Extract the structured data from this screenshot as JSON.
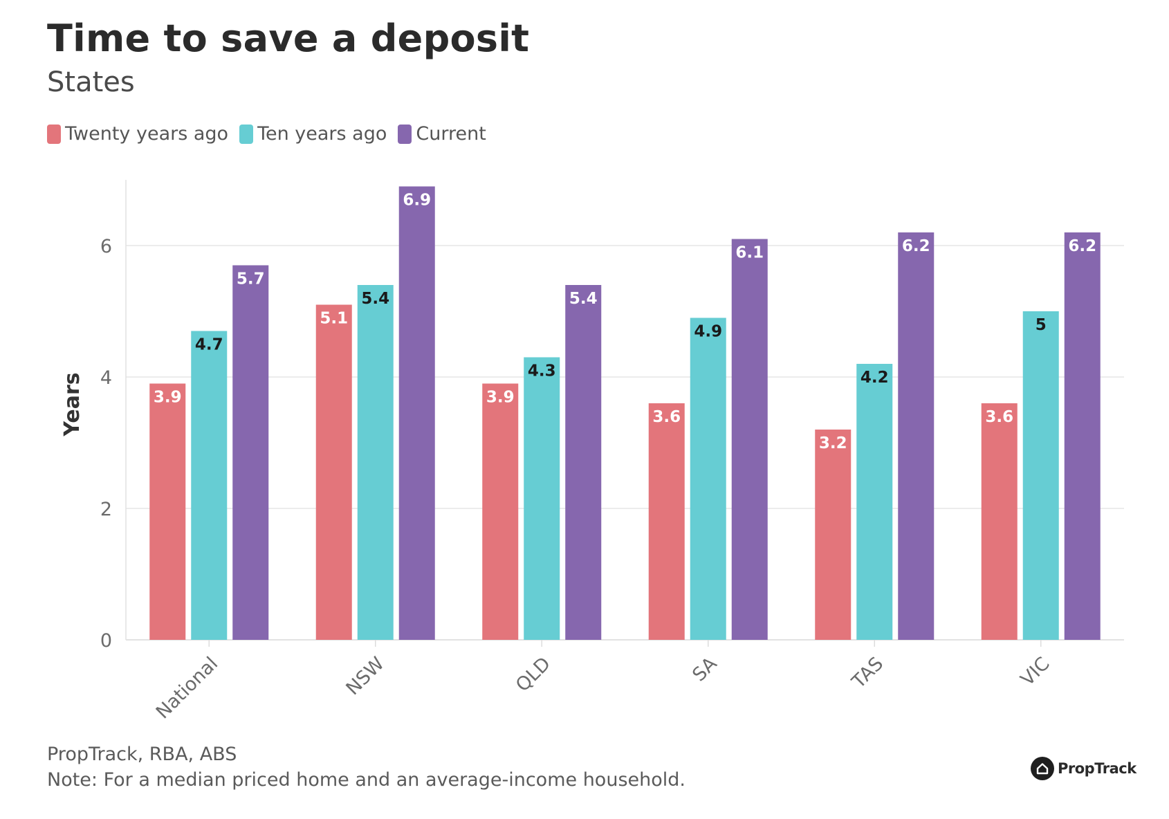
{
  "chart_data": {
    "type": "bar",
    "title": "Time to save a deposit",
    "subtitle": "States",
    "ylabel": "Years",
    "xlabel": "",
    "ylim": [
      0,
      7
    ],
    "yticks": [
      "0",
      "2",
      "4",
      "6"
    ],
    "grid": true,
    "legend_position": "top-left",
    "categories": [
      "National",
      "NSW",
      "QLD",
      "SA",
      "TAS",
      "VIC"
    ],
    "series": [
      {
        "name": "Twenty years ago",
        "color": "#e3757b",
        "label_color": "#ffffff",
        "values": [
          3.9,
          5.1,
          3.9,
          3.6,
          3.2,
          3.6
        ],
        "labels": [
          "3.9",
          "5.1",
          "3.9",
          "3.6",
          "3.2",
          "3.6"
        ]
      },
      {
        "name": "Ten years ago",
        "color": "#66cdd3",
        "label_color": "#1a1a1a",
        "values": [
          4.7,
          5.4,
          4.3,
          4.9,
          4.2,
          5
        ],
        "labels": [
          "4.7",
          "5.4",
          "4.3",
          "4.9",
          "4.2",
          "5"
        ]
      },
      {
        "name": "Current",
        "color": "#8667ae",
        "label_color": "#ffffff",
        "values": [
          5.7,
          6.9,
          5.4,
          6.1,
          6.2,
          6.2
        ],
        "labels": [
          "5.7",
          "6.9",
          "5.4",
          "6.1",
          "6.2",
          "6.2"
        ]
      }
    ]
  },
  "footer": {
    "source": "PropTrack, RBA, ABS",
    "note": "Note: For a median priced home and an average-income household."
  },
  "brand": {
    "name": "PropTrack",
    "icon": "house-icon"
  }
}
